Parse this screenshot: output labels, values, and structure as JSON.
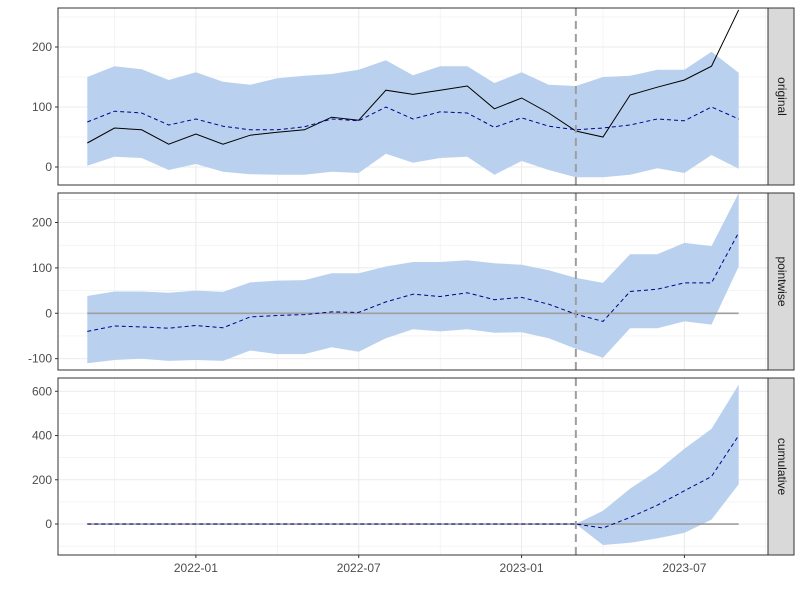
{
  "chart_data": {
    "type": "line",
    "x": [
      "2021-09",
      "2021-10",
      "2021-11",
      "2021-12",
      "2022-01",
      "2022-02",
      "2022-03",
      "2022-04",
      "2022-05",
      "2022-06",
      "2022-07",
      "2022-08",
      "2022-09",
      "2022-10",
      "2022-11",
      "2022-12",
      "2023-01",
      "2023-02",
      "2023-03",
      "2023-04",
      "2023-05",
      "2023-06",
      "2023-07",
      "2023-08",
      "2023-09"
    ],
    "x_ticks": [
      "2022-01",
      "2022-07",
      "2023-01",
      "2023-07"
    ],
    "intervention_x": "2023-03",
    "grid": true,
    "panels": [
      {
        "label": "original",
        "ylim": [
          -30,
          265
        ],
        "yticks": [
          0,
          100,
          200
        ],
        "zero_line": false,
        "series": [
          {
            "role": "observed",
            "values": [
              40,
              65,
              62,
              38,
              55,
              38,
              53,
              58,
              62,
              83,
              78,
              128,
              121,
              128,
              135,
              97,
              115,
              90,
              60,
              50,
              120,
              133,
              145,
              168,
              262
            ]
          },
          {
            "role": "predicted",
            "values": [
              75,
              93,
              90,
              70,
              80,
              68,
              62,
              62,
              67,
              80,
              77,
              100,
              80,
              92,
              90,
              66,
              82,
              68,
              62,
              65,
              70,
              80,
              77,
              100,
              80
            ]
          },
          {
            "role": "upper",
            "values": [
              150,
              168,
              163,
              145,
              158,
              142,
              137,
              148,
              152,
              155,
              162,
              178,
              153,
              168,
              168,
              140,
              158,
              137,
              135,
              150,
              152,
              162,
              162,
              192,
              157
            ]
          },
          {
            "role": "lower",
            "values": [
              2,
              17,
              15,
              -5,
              5,
              -8,
              -12,
              -13,
              -13,
              -8,
              -10,
              22,
              7,
              15,
              17,
              -13,
              10,
              -5,
              -17,
              -17,
              -13,
              -2,
              -10,
              20,
              -3
            ]
          }
        ]
      },
      {
        "label": "pointwise",
        "ylim": [
          -125,
          265
        ],
        "yticks": [
          -100,
          0,
          100,
          200
        ],
        "zero_line": true,
        "series": [
          {
            "role": "predicted",
            "values": [
              -40,
              -28,
              -30,
              -33,
              -27,
              -32,
              -8,
              -5,
              -3,
              3,
              2,
              25,
              42,
              37,
              45,
              30,
              35,
              20,
              -2,
              -18,
              48,
              53,
              67,
              67,
              178
            ]
          },
          {
            "role": "upper",
            "values": [
              38,
              48,
              48,
              45,
              50,
              47,
              68,
              72,
              73,
              88,
              88,
              103,
              113,
              113,
              117,
              110,
              107,
              95,
              78,
              67,
              130,
              130,
              155,
              148,
              265
            ]
          },
          {
            "role": "lower",
            "values": [
              -110,
              -103,
              -100,
              -105,
              -103,
              -105,
              -82,
              -90,
              -90,
              -75,
              -85,
              -55,
              -35,
              -40,
              -35,
              -43,
              -42,
              -55,
              -78,
              -98,
              -33,
              -33,
              -18,
              -25,
              103
            ]
          }
        ]
      },
      {
        "label": "cumulative",
        "ylim": [
          -140,
          660
        ],
        "yticks": [
          0,
          200,
          400,
          600
        ],
        "zero_line": true,
        "series": [
          {
            "role": "predicted",
            "values": [
              0,
              0,
              0,
              0,
              0,
              0,
              0,
              0,
              0,
              0,
              0,
              0,
              0,
              0,
              0,
              0,
              0,
              0,
              0,
              -18,
              30,
              85,
              150,
              215,
              400
            ]
          },
          {
            "role": "upper",
            "values": [
              0,
              0,
              0,
              0,
              0,
              0,
              0,
              0,
              0,
              0,
              0,
              0,
              0,
              0,
              0,
              0,
              0,
              0,
              0,
              60,
              160,
              240,
              340,
              430,
              630
            ]
          },
          {
            "role": "lower",
            "values": [
              0,
              0,
              0,
              0,
              0,
              0,
              0,
              0,
              0,
              0,
              0,
              0,
              0,
              0,
              0,
              0,
              0,
              0,
              0,
              -95,
              -85,
              -65,
              -40,
              20,
              180
            ]
          }
        ]
      }
    ]
  },
  "colors": {
    "band": "#b9d1ee",
    "predicted": "#00008b",
    "observed": "#000000",
    "zero_line": "#9e9e9e",
    "intervention": "#9e9e9e",
    "grid": "#ebebeb",
    "strip_bg": "#d9d9d9"
  }
}
